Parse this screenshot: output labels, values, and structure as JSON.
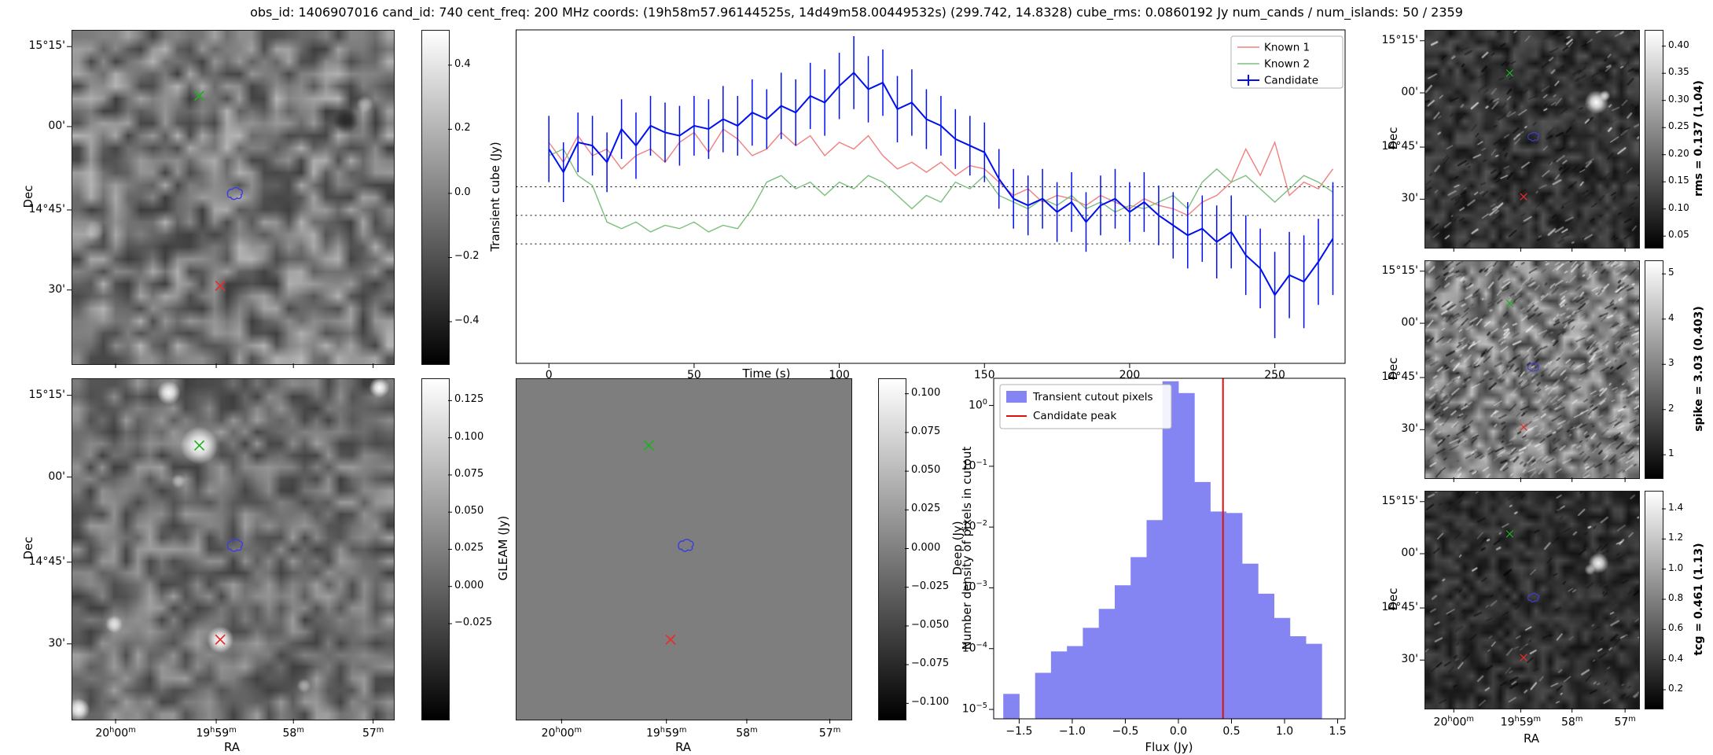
{
  "title": "obs_id: 1406907016 cand_id: 740 cent_freq: 200 MHz coords: (19h58m57.96144525s, 14d49m58.00449532s) (299.742, 14.8328) cube_rms: 0.0860192 Jy num_cands / num_islands: 50 / 2359",
  "axis_labels": {
    "dec": "Dec",
    "ra": "RA"
  },
  "sky": {
    "dec_ticks": [
      "15°15'",
      "00'",
      "14°45'",
      "30'"
    ],
    "ra_ticks": [
      "20h00m",
      "19h59m",
      "58m",
      "57m"
    ]
  },
  "colors": {
    "known1_line": "#f08080",
    "known2_line": "#7cbf7c",
    "candidate_line": "#0010ee",
    "hist_bar": "#8484f2",
    "peak_line": "#dd1111",
    "marker_green": "#1db21d",
    "marker_red": "#e82c2c",
    "contour_blue": "#3f3fd9",
    "deep_bg": "#7e7e7e"
  },
  "colorbars": {
    "transient": {
      "ticks": [
        "0.4",
        "0.2",
        "0.0",
        "−0.2",
        "−0.4"
      ]
    },
    "gleam": {
      "label": "GLEAM (Jy)",
      "ticks": [
        "0.125",
        "0.100",
        "0.075",
        "0.050",
        "0.025",
        "0.000",
        "−0.025"
      ]
    },
    "deep": {
      "label": "Deep (Jy)",
      "ticks": [
        "0.100",
        "0.075",
        "0.050",
        "0.025",
        "0.000",
        "−0.025",
        "−0.050",
        "−0.075",
        "−0.100"
      ]
    },
    "rms": {
      "label": "rms = 0.137 (1.04)",
      "ticks": [
        "0.40",
        "0.35",
        "0.30",
        "0.25",
        "0.20",
        "0.15",
        "0.10",
        "0.05"
      ]
    },
    "spike": {
      "label": "spike = 3.03 (0.403)",
      "ticks": [
        "5",
        "4",
        "3",
        "2",
        "1"
      ]
    },
    "tcg": {
      "label": "tcg = 0.461 (1.13)",
      "ticks": [
        "1.4",
        "1.2",
        "1.0",
        "0.8",
        "0.6",
        "0.4",
        "0.2"
      ]
    }
  },
  "chart_data": [
    {
      "type": "line",
      "title": "",
      "xlabel": "Time (s)",
      "ylabel": "Transient cube (Jy)",
      "xlim": [
        -11.3,
        274.2
      ],
      "ylim": [
        -0.446,
        0.559
      ],
      "xticks": [
        0,
        50,
        100,
        150,
        200,
        250
      ],
      "hlines": [
        0.086,
        0.0,
        -0.086
      ],
      "legend_position": "upper right",
      "x": [
        0,
        5,
        10,
        15,
        20,
        25,
        30,
        35,
        40,
        45,
        50,
        55,
        60,
        65,
        70,
        75,
        80,
        85,
        90,
        95,
        100,
        105,
        110,
        115,
        120,
        125,
        130,
        135,
        140,
        145,
        150,
        155,
        160,
        165,
        170,
        175,
        180,
        185,
        190,
        195,
        200,
        205,
        210,
        215,
        220,
        225,
        230,
        235,
        240,
        245,
        250,
        255,
        260,
        265,
        270
      ],
      "series": [
        {
          "name": "Known 1",
          "color": "#f08080",
          "values": [
            0.22,
            0.16,
            0.24,
            0.18,
            0.2,
            0.14,
            0.18,
            0.2,
            0.16,
            0.22,
            0.25,
            0.19,
            0.26,
            0.23,
            0.18,
            0.2,
            0.25,
            0.21,
            0.24,
            0.18,
            0.22,
            0.2,
            0.24,
            0.18,
            0.14,
            0.16,
            0.13,
            0.16,
            0.12,
            0.15,
            0.14,
            0.1,
            0.06,
            0.08,
            0.04,
            0.06,
            0.05,
            0.03,
            0.06,
            0.04,
            0.02,
            0.05,
            0.03,
            0.02,
            0.0,
            0.04,
            0.06,
            0.1,
            0.2,
            0.12,
            0.22,
            0.06,
            0.1,
            0.08,
            0.14
          ]
        },
        {
          "name": "Known 2",
          "color": "#7cbf7c",
          "values": [
            0.18,
            0.2,
            0.12,
            0.09,
            -0.02,
            -0.04,
            -0.02,
            -0.05,
            -0.03,
            -0.04,
            -0.02,
            -0.05,
            -0.03,
            -0.04,
            0.02,
            0.1,
            0.12,
            0.08,
            0.1,
            0.06,
            0.1,
            0.08,
            0.12,
            0.1,
            0.06,
            0.02,
            0.06,
            0.04,
            0.1,
            0.08,
            0.12,
            0.06,
            0.04,
            0.02,
            0.05,
            0.03,
            0.06,
            0.02,
            0.04,
            0.01,
            0.03,
            0.02,
            0.04,
            0.06,
            0.02,
            0.1,
            0.14,
            0.1,
            0.12,
            0.08,
            0.04,
            0.08,
            0.12,
            0.1,
            0.07
          ]
        },
        {
          "name": "Candidate",
          "color": "#0010ee",
          "values": [
            0.2,
            0.13,
            0.22,
            0.21,
            0.16,
            0.26,
            0.21,
            0.27,
            0.25,
            0.24,
            0.27,
            0.26,
            0.29,
            0.27,
            0.31,
            0.29,
            0.33,
            0.31,
            0.36,
            0.34,
            0.39,
            0.43,
            0.38,
            0.4,
            0.32,
            0.34,
            0.29,
            0.27,
            0.23,
            0.21,
            0.19,
            0.11,
            0.05,
            0.03,
            0.05,
            0.01,
            0.04,
            -0.02,
            0.03,
            0.05,
            0.01,
            0.04,
            0.0,
            -0.03,
            -0.06,
            -0.04,
            -0.08,
            -0.05,
            -0.12,
            -0.16,
            -0.24,
            -0.18,
            -0.2,
            -0.14,
            -0.07
          ],
          "errors": [
            0.1,
            0.09,
            0.09,
            0.09,
            0.09,
            0.09,
            0.1,
            0.09,
            0.09,
            0.09,
            0.09,
            0.09,
            0.1,
            0.09,
            0.1,
            0.09,
            0.1,
            0.1,
            0.1,
            0.1,
            0.1,
            0.11,
            0.1,
            0.1,
            0.1,
            0.1,
            0.09,
            0.09,
            0.09,
            0.09,
            0.09,
            0.09,
            0.09,
            0.09,
            0.09,
            0.09,
            0.09,
            0.09,
            0.09,
            0.09,
            0.09,
            0.09,
            0.09,
            0.1,
            0.1,
            0.1,
            0.11,
            0.11,
            0.12,
            0.12,
            0.13,
            0.13,
            0.14,
            0.13,
            0.17
          ]
        }
      ]
    },
    {
      "type": "bar",
      "title": "",
      "xlabel": "Flux (Jy)",
      "ylabel": "Number density of pixels in cutout",
      "yscale": "log",
      "xlim": [
        -1.74,
        1.57
      ],
      "ylim": [
        7e-06,
        2.8
      ],
      "xticks": [
        -1.5,
        -1.0,
        -0.5,
        0.0,
        0.5,
        1.0,
        1.5
      ],
      "yticks_exponents": [
        0,
        -1,
        -2,
        -3,
        -4,
        -5
      ],
      "bin_edges": [
        -1.65,
        -1.5,
        -1.35,
        -1.2,
        -1.05,
        -0.9,
        -0.75,
        -0.6,
        -0.45,
        -0.3,
        -0.15,
        0.0,
        0.15,
        0.3,
        0.45,
        0.6,
        0.75,
        0.9,
        1.05,
        1.2,
        1.35
      ],
      "values": [
        1.8e-05,
        0,
        4e-05,
        9e-05,
        0.00011,
        0.00022,
        0.00045,
        0.0011,
        0.0032,
        0.013,
        2.5,
        1.6,
        0.055,
        0.018,
        0.017,
        0.0025,
        0.0008,
        0.00032,
        0.00016,
        0.00012
      ],
      "bar_color": "#8484f2",
      "vline": {
        "x": 0.42,
        "color": "#dd1111",
        "label": "Candidate peak"
      },
      "legend": [
        "Transient cutout pixels",
        "Candidate peak"
      ],
      "legend_position": "upper left"
    }
  ]
}
